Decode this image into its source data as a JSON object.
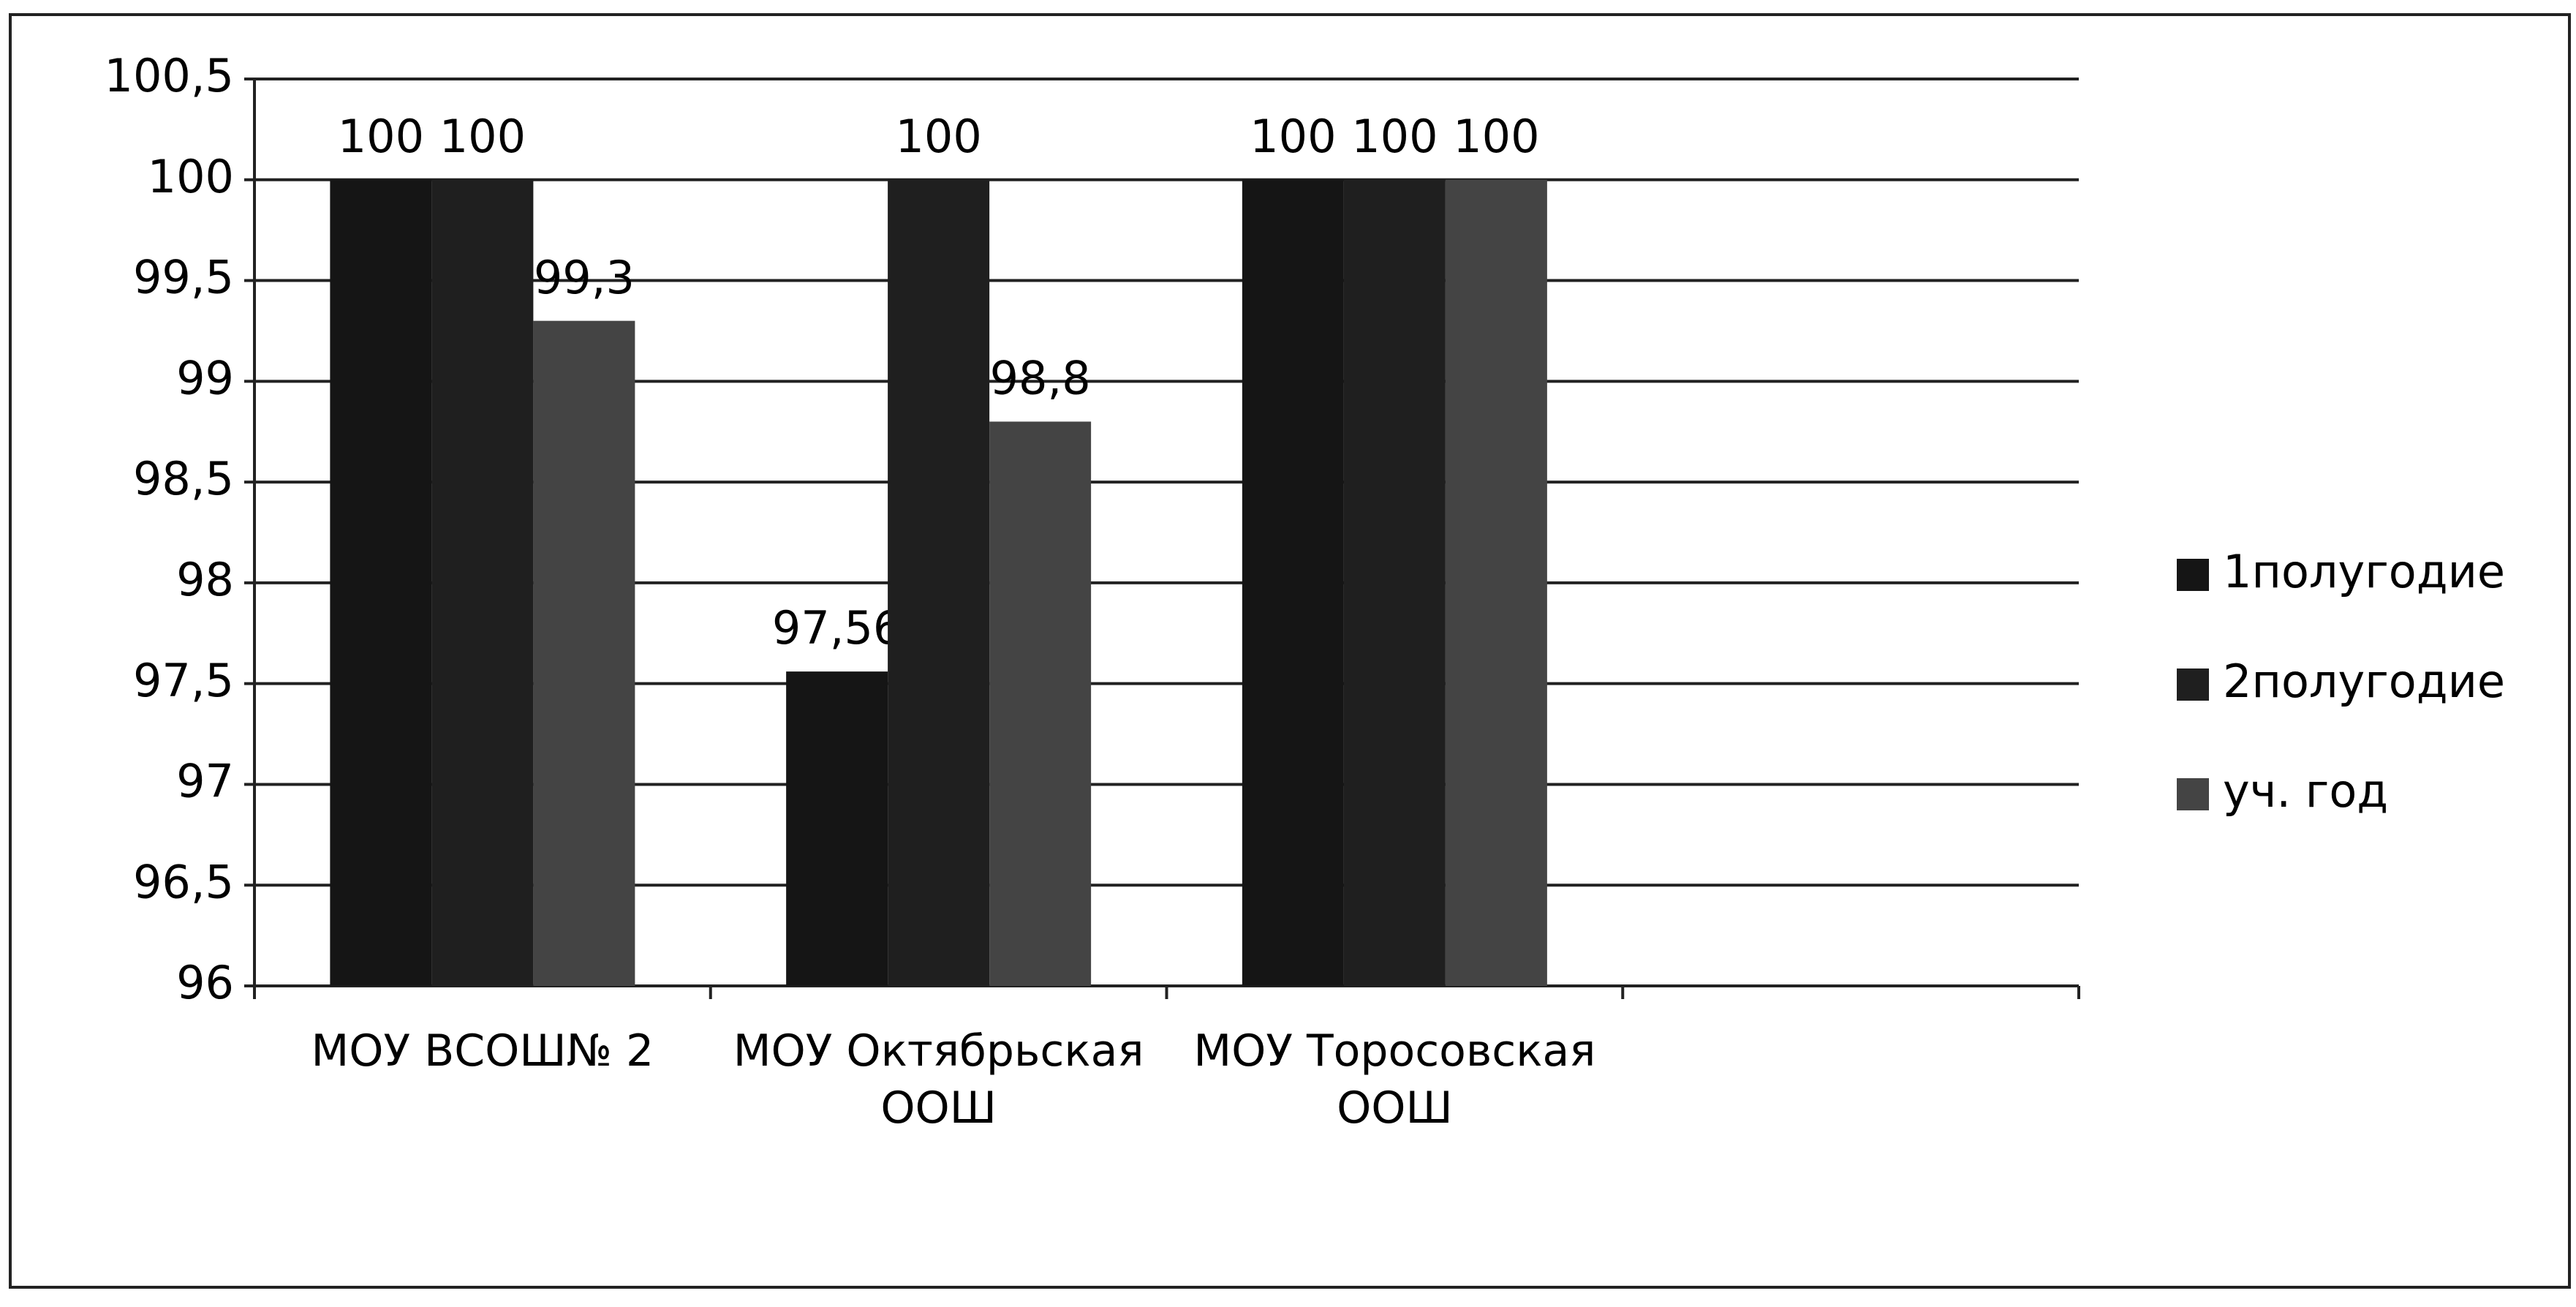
{
  "chart_data": {
    "type": "bar",
    "categories": [
      "МОУ ВСОШ№ 2",
      "МОУ Октябрьская ООШ",
      "МОУ Торосовская ООШ",
      null
    ],
    "series": [
      {
        "name": "1полугодие",
        "color": "#151515",
        "values": [
          100,
          97.56,
          100,
          null
        ],
        "value_labels": [
          "100",
          "97,56",
          "100",
          null
        ]
      },
      {
        "name": "2полугодие",
        "color": "#1f1f1f",
        "values": [
          100,
          100,
          100,
          null
        ],
        "value_labels": [
          "100",
          "100",
          "100",
          null
        ]
      },
      {
        "name": "уч. год",
        "color": "#444444",
        "values": [
          99.3,
          98.8,
          100,
          null
        ],
        "value_labels": [
          "99,3",
          "98,8",
          "100",
          null
        ]
      }
    ],
    "ylim": [
      96,
      100.5
    ],
    "yticks": [
      96,
      {
        "value": 96.5,
        "label": "96,5"
      },
      97,
      {
        "value": 97.5,
        "label": "97,5"
      },
      98,
      {
        "value": 98.5,
        "label": "98,5"
      },
      99,
      {
        "value": 99.5,
        "label": "99,5"
      },
      100,
      {
        "value": 100.5,
        "label": "100,5"
      }
    ],
    "grid": true,
    "legend": "right"
  }
}
